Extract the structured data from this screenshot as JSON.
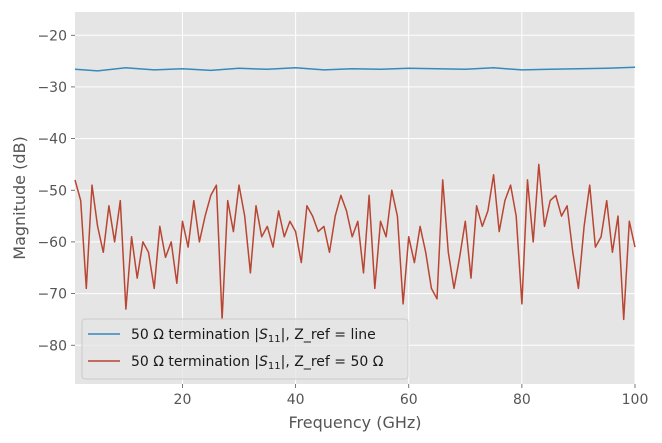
{
  "chart_data": {
    "type": "line",
    "title": "",
    "xlabel": "Frequency (GHz)",
    "ylabel": "Magnitude (dB)",
    "xlim": [
      1,
      100
    ],
    "ylim": [
      -87.5,
      -15.5
    ],
    "xticks": [
      20,
      40,
      60,
      80,
      100
    ],
    "yticks": [
      -80,
      -70,
      -60,
      -50,
      -40,
      -30,
      -20
    ],
    "xtick_labels": [
      "20",
      "40",
      "60",
      "80",
      "100"
    ],
    "ytick_labels": [
      "−80",
      "−70",
      "−60",
      "−50",
      "−40",
      "−30",
      "−20"
    ],
    "grid": true,
    "style": "ggplot",
    "legend_position": "lower-left",
    "series": [
      {
        "name": "50 Ω termination |S11|, Z_ref = line",
        "legend_prefix": "50 Ω termination |",
        "legend_math": "S",
        "legend_sub": "11",
        "legend_suffix": "|, Z_ref = line",
        "color": "#348abd",
        "x": [
          1,
          5,
          10,
          15,
          20,
          25,
          30,
          35,
          40,
          45,
          50,
          55,
          60,
          65,
          70,
          75,
          80,
          85,
          90,
          95,
          100
        ],
        "y": [
          -26.6,
          -26.9,
          -26.3,
          -26.7,
          -26.5,
          -26.8,
          -26.4,
          -26.6,
          -26.3,
          -26.7,
          -26.5,
          -26.6,
          -26.4,
          -26.5,
          -26.6,
          -26.3,
          -26.7,
          -26.6,
          -26.5,
          -26.4,
          -26.2
        ]
      },
      {
        "name": "50 Ω termination |S11|, Z_ref = 50 Ω",
        "legend_prefix": "50 Ω termination |",
        "legend_math": "S",
        "legend_sub": "11",
        "legend_suffix": "|, Z_ref = 50 Ω",
        "color": "#b94533",
        "x": [
          1,
          2,
          3,
          4,
          5,
          6,
          7,
          8,
          9,
          10,
          11,
          12,
          13,
          14,
          15,
          16,
          17,
          18,
          19,
          20,
          21,
          22,
          23,
          24,
          25,
          26,
          27,
          28,
          29,
          30,
          31,
          32,
          33,
          34,
          35,
          36,
          37,
          38,
          39,
          40,
          41,
          42,
          43,
          44,
          45,
          46,
          47,
          48,
          49,
          50,
          51,
          52,
          53,
          54,
          55,
          56,
          57,
          58,
          59,
          60,
          61,
          62,
          63,
          64,
          65,
          66,
          67,
          68,
          69,
          70,
          71,
          72,
          73,
          74,
          75,
          76,
          77,
          78,
          79,
          80,
          81,
          82,
          83,
          84,
          85,
          86,
          87,
          88,
          89,
          90,
          91,
          92,
          93,
          94,
          95,
          96,
          97,
          98,
          99,
          100
        ],
        "y": [
          -48,
          -52,
          -69,
          -49,
          -57,
          -62,
          -53,
          -60,
          -52,
          -73,
          -59,
          -67,
          -60,
          -62,
          -69,
          -57,
          -63,
          -60,
          -68,
          -56,
          -61,
          -52,
          -60,
          -55,
          -51,
          -49,
          -75,
          -52,
          -58,
          -49,
          -55,
          -66,
          -53,
          -59,
          -57,
          -61,
          -54,
          -59,
          -56,
          -58,
          -64,
          -53,
          -55,
          -58,
          -57,
          -62,
          -55,
          -51,
          -54,
          -59,
          -56,
          -66,
          -51,
          -69,
          -56,
          -59,
          -50,
          -55,
          -72,
          -59,
          -64,
          -57,
          -62,
          -69,
          -71,
          -48,
          -62,
          -69,
          -63,
          -56,
          -67,
          -53,
          -57,
          -54,
          -47,
          -58,
          -52,
          -49,
          -55,
          -72,
          -48,
          -60,
          -45,
          -57,
          -52,
          -51,
          -55,
          -53,
          -62,
          -69,
          -57,
          -49,
          -61,
          -59,
          -52,
          -62,
          -55,
          -75,
          -56,
          -61
        ]
      }
    ]
  }
}
